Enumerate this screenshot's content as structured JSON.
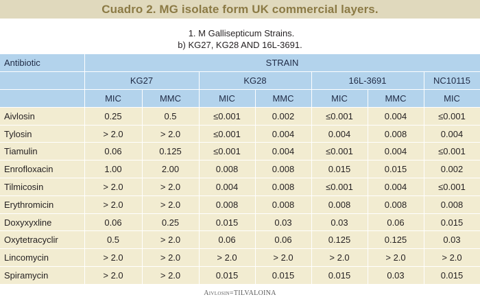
{
  "title": "Cuadro 2. MG isolate form UK commercial layers.",
  "subtitle": {
    "line1": "1.  M Gallisepticum   Strains.",
    "line2": "b) KG27, KG28 AND 16L-3691."
  },
  "table": {
    "antibiotic_header": "Antibiotic",
    "strain_header": "STRAIN",
    "strains": [
      "KG27",
      "KG28",
      "16L-3691",
      "NC10115"
    ],
    "columns": [
      "MIC",
      "MMC",
      "MIC",
      "MMC",
      "MIC",
      "MMC",
      "MIC"
    ],
    "rows": [
      {
        "name": "Aivlosin",
        "values": [
          "0.25",
          "0.5",
          "≤0.001",
          "0.002",
          "≤0.001",
          "0.004",
          "≤0.001"
        ]
      },
      {
        "name": "Tylosin",
        "values": [
          "> 2.0",
          "> 2.0",
          "≤0.001",
          "0.004",
          "0.004",
          "0.008",
          "0.004"
        ]
      },
      {
        "name": "Tiamulin",
        "values": [
          "0.06",
          "0.125",
          "≤0.001",
          "0.004",
          "≤0.001",
          "0.004",
          "≤0.001"
        ]
      },
      {
        "name": "Enrofloxacin",
        "values": [
          "1.00",
          "2.00",
          "0.008",
          "0.008",
          "0.015",
          "0.015",
          "0.002"
        ]
      },
      {
        "name": "Tilmicosin",
        "values": [
          "> 2.0",
          "> 2.0",
          "0.004",
          "0.008",
          "≤0.001",
          "0.004",
          "≤0.001"
        ]
      },
      {
        "name": "Erythromicin",
        "values": [
          "> 2.0",
          "> 2.0",
          "0.008",
          "0.008",
          "0.008",
          "0.008",
          "0.008"
        ]
      },
      {
        "name": "Doxyxyxline",
        "values": [
          "0.06",
          "0.25",
          "0.015",
          "0.03",
          "0.03",
          "0.06",
          "0.015"
        ]
      },
      {
        "name": "Oxytetracyclir",
        "values": [
          "0.5",
          "> 2.0",
          "0.06",
          "0.06",
          "0.125",
          "0.125",
          "0.03"
        ]
      },
      {
        "name": "Lincomycin",
        "values": [
          "> 2.0",
          "> 2.0",
          "> 2.0",
          "> 2.0",
          "> 2.0",
          "> 2.0",
          "> 2.0"
        ]
      },
      {
        "name": "Spiramycin",
        "values": [
          "> 2.0",
          "> 2.0",
          "0.015",
          "0.015",
          "0.015",
          "0.03",
          "0.015"
        ]
      }
    ]
  },
  "footer": {
    "brand": "Aivlosin",
    "separator": "=",
    "product": "TILVALOINA"
  },
  "colors": {
    "title_band": "#e0d9bd",
    "title_text": "#8b7a45",
    "header_blue": "#b3d3ec",
    "body_beige": "#f2ecd1"
  }
}
